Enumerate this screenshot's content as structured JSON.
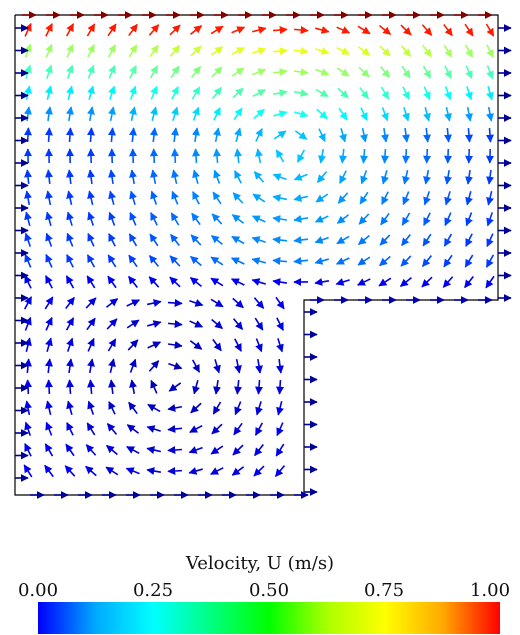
{
  "colorbar": {
    "title": "Velocity, U (m/s)",
    "ticks": [
      "0.00",
      "0.25",
      "0.50",
      "0.75",
      "1.00"
    ],
    "range": [
      0,
      1
    ],
    "colors": [
      "#0000ff",
      "#00aaff",
      "#00ffff",
      "#00ff80",
      "#00ff00",
      "#aaff00",
      "#ffff00",
      "#ffaa00",
      "#ff0000"
    ]
  },
  "colors": {
    "boundary": "#000000",
    "inlet_arrows": "#0000cc",
    "lid_arrows": "#cc0000"
  }
}
